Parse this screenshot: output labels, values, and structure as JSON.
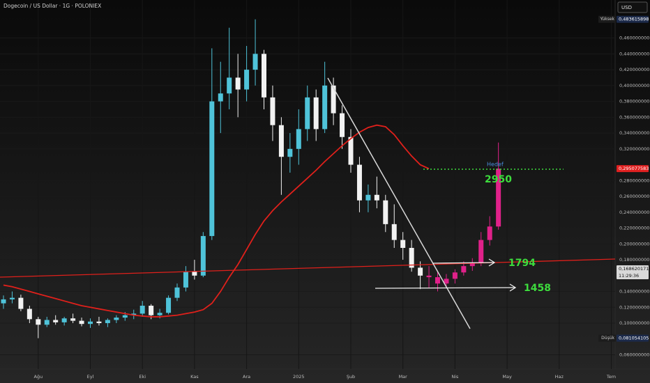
{
  "chart_data": {
    "type": "candlestick",
    "title": "Dogecoin / US Dollar · 1G · POLONIEX",
    "currency_button": "USD",
    "categories": [
      null,
      null,
      null,
      null,
      "Ağu",
      null,
      null,
      null,
      null,
      null,
      "Eyl",
      null,
      null,
      null,
      null,
      null,
      "Eki",
      null,
      null,
      null,
      null,
      null,
      "Kas",
      null,
      null,
      null,
      null,
      null,
      "Ara",
      null,
      null,
      null,
      null,
      null,
      "2025",
      null,
      null,
      null,
      null,
      null,
      "Şub",
      null,
      null,
      null,
      null,
      null,
      "Mar",
      null,
      null,
      null,
      null,
      null,
      "Nis",
      null,
      null,
      null,
      null,
      null,
      "May",
      null,
      null,
      null,
      null,
      null,
      "Haz",
      null,
      null,
      null,
      null,
      null,
      "Tem"
    ],
    "ylim": [
      0.042,
      0.508
    ],
    "yticks": [
      {
        "value": 0.46,
        "label": "0,460000000"
      },
      {
        "value": 0.44,
        "label": "0,440000000"
      },
      {
        "value": 0.42,
        "label": "0,420000000"
      },
      {
        "value": 0.4,
        "label": "0,400000000"
      },
      {
        "value": 0.38,
        "label": "0,380000000"
      },
      {
        "value": 0.36,
        "label": "0,360000000"
      },
      {
        "value": 0.34,
        "label": "0,340000000"
      },
      {
        "value": 0.32,
        "label": "0,320000000"
      },
      {
        "value": 0.28,
        "label": "0,280000000"
      },
      {
        "value": 0.26,
        "label": "0,260000000"
      },
      {
        "value": 0.24,
        "label": "0,240000000"
      },
      {
        "value": 0.22,
        "label": "0,220000000"
      },
      {
        "value": 0.2,
        "label": "0,200000000"
      },
      {
        "value": 0.18,
        "label": "0,180000000"
      },
      {
        "value": 0.14,
        "label": "0,140000000"
      },
      {
        "value": 0.12,
        "label": "0,120000000"
      },
      {
        "value": 0.1,
        "label": "0,100000000"
      },
      {
        "value": 0.06,
        "label": "0,060000000"
      }
    ],
    "grid": true,
    "series": [
      {
        "type": "candlestick",
        "up_color": "#4fc3d9",
        "down_color": "#f2f2f2",
        "values": [
          [
            0.125,
            0.135,
            0.118,
            0.13
          ],
          [
            0.13,
            0.14,
            0.125,
            0.132
          ],
          [
            0.132,
            0.136,
            0.115,
            0.118
          ],
          [
            0.118,
            0.122,
            0.1,
            0.105
          ],
          [
            0.105,
            0.108,
            0.081,
            0.098
          ],
          [
            0.098,
            0.108,
            0.095,
            0.104
          ],
          [
            0.104,
            0.11,
            0.098,
            0.101
          ],
          [
            0.101,
            0.108,
            0.097,
            0.106
          ],
          [
            0.106,
            0.112,
            0.1,
            0.103
          ],
          [
            0.103,
            0.107,
            0.096,
            0.099
          ],
          [
            0.099,
            0.106,
            0.094,
            0.102
          ],
          [
            0.102,
            0.108,
            0.097,
            0.1
          ],
          [
            0.1,
            0.106,
            0.095,
            0.104
          ],
          [
            0.104,
            0.11,
            0.1,
            0.107
          ],
          [
            0.107,
            0.114,
            0.103,
            0.11
          ],
          [
            0.11,
            0.117,
            0.105,
            0.112
          ],
          [
            0.112,
            0.128,
            0.108,
            0.122
          ],
          [
            0.122,
            0.124,
            0.105,
            0.11
          ],
          [
            0.11,
            0.118,
            0.106,
            0.113
          ],
          [
            0.113,
            0.135,
            0.111,
            0.132
          ],
          [
            0.132,
            0.15,
            0.128,
            0.145
          ],
          [
            0.145,
            0.172,
            0.14,
            0.165
          ],
          [
            0.165,
            0.18,
            0.155,
            0.16
          ],
          [
            0.16,
            0.215,
            0.158,
            0.21
          ],
          [
            0.21,
            0.447,
            0.205,
            0.38
          ],
          [
            0.38,
            0.43,
            0.34,
            0.39
          ],
          [
            0.39,
            0.473,
            0.37,
            0.41
          ],
          [
            0.41,
            0.44,
            0.36,
            0.395
          ],
          [
            0.395,
            0.45,
            0.38,
            0.42
          ],
          [
            0.42,
            0.4836,
            0.4,
            0.44
          ],
          [
            0.44,
            0.445,
            0.37,
            0.385
          ],
          [
            0.385,
            0.4,
            0.33,
            0.35
          ],
          [
            0.35,
            0.36,
            0.262,
            0.31
          ],
          [
            0.31,
            0.34,
            0.29,
            0.32
          ],
          [
            0.32,
            0.37,
            0.3,
            0.345
          ],
          [
            0.345,
            0.4,
            0.33,
            0.385
          ],
          [
            0.385,
            0.395,
            0.33,
            0.345
          ],
          [
            0.345,
            0.43,
            0.34,
            0.4
          ],
          [
            0.4,
            0.41,
            0.35,
            0.365
          ],
          [
            0.365,
            0.375,
            0.32,
            0.335
          ],
          [
            0.335,
            0.345,
            0.29,
            0.3
          ],
          [
            0.3,
            0.31,
            0.24,
            0.255
          ],
          [
            0.255,
            0.275,
            0.24,
            0.262
          ],
          [
            0.262,
            0.285,
            0.245,
            0.255
          ],
          [
            0.255,
            0.262,
            0.215,
            0.225
          ],
          [
            0.225,
            0.25,
            0.195,
            0.205
          ],
          [
            0.205,
            0.215,
            0.18,
            0.195
          ],
          [
            0.195,
            0.205,
            0.165,
            0.17
          ],
          [
            0.17,
            0.178,
            0.143,
            0.16
          ],
          null,
          null,
          null,
          null,
          null,
          null,
          null,
          null,
          null,
          null,
          null,
          null,
          null,
          null,
          null,
          null,
          null,
          null,
          null,
          null,
          null,
          null
        ]
      },
      {
        "type": "candlestick",
        "up_color": "#e0218a",
        "down_color": "#e0218a",
        "values": [
          null,
          null,
          null,
          null,
          null,
          null,
          null,
          null,
          null,
          null,
          null,
          null,
          null,
          null,
          null,
          null,
          null,
          null,
          null,
          null,
          null,
          null,
          null,
          null,
          null,
          null,
          null,
          null,
          null,
          null,
          null,
          null,
          null,
          null,
          null,
          null,
          null,
          null,
          null,
          null,
          null,
          null,
          null,
          null,
          null,
          null,
          null,
          null,
          null,
          [
            0.16,
            0.172,
            0.145,
            0.158
          ],
          [
            0.158,
            0.165,
            0.14,
            0.15
          ],
          [
            0.15,
            0.162,
            0.146,
            0.156
          ],
          [
            0.156,
            0.168,
            0.15,
            0.164
          ],
          [
            0.164,
            0.178,
            0.16,
            0.172
          ],
          [
            0.172,
            0.182,
            0.166,
            0.176
          ],
          [
            0.176,
            0.215,
            0.172,
            0.205
          ],
          [
            0.205,
            0.235,
            0.198,
            0.222
          ],
          [
            0.222,
            0.328,
            0.218,
            0.295
          ],
          null,
          null,
          null,
          null,
          null,
          null,
          null,
          null,
          null,
          null,
          null,
          null,
          null
        ]
      },
      {
        "type": "line",
        "color": "#e0201b",
        "values": [
          0.148,
          0.146,
          0.143,
          0.14,
          0.137,
          0.134,
          0.131,
          0.128,
          0.125,
          0.122,
          0.12,
          0.118,
          0.116,
          0.114,
          0.112,
          0.11,
          0.109,
          0.108,
          0.108,
          0.109,
          0.11,
          0.112,
          0.114,
          0.117,
          0.125,
          0.14,
          0.158,
          0.174,
          0.193,
          0.212,
          0.229,
          0.242,
          0.253,
          0.263,
          0.273,
          0.283,
          0.293,
          0.304,
          0.314,
          0.324,
          0.333,
          0.341,
          0.347,
          0.35,
          0.348,
          0.338,
          0.324,
          0.311,
          0.3,
          0.295,
          null,
          null,
          null,
          null,
          null,
          null,
          null,
          null,
          null,
          null,
          null,
          null,
          null,
          null,
          null,
          null,
          null,
          null,
          null,
          null,
          null
        ]
      }
    ],
    "price_tags": [
      {
        "name": "Yüksek",
        "value": 0.483615898,
        "label": "0,483615898",
        "color": "#1c2a4a"
      },
      {
        "value": 0.295077583,
        "label": "0,295077583",
        "color": "#e02020"
      },
      {
        "value": 0.168620171,
        "label": "0,168620171",
        "time": "11:29:36",
        "color": "#d9d9d9"
      },
      {
        "name": "Düşük",
        "value": 0.081054105,
        "label": "0,081054105",
        "color": "#1c2a4a"
      }
    ],
    "annotations": {
      "target": "Hedef",
      "target_level": "2950",
      "upper_level": "1794",
      "lower_level": "1458"
    }
  }
}
